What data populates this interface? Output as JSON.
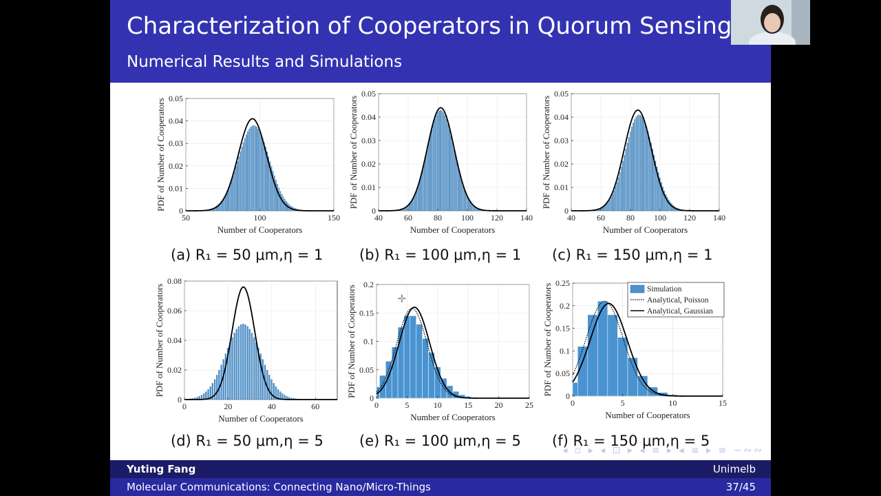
{
  "slide": {
    "title": "Characterization of Cooperators in Quorum Sensing",
    "subtitle": "Numerical Results and Simulations",
    "author": "Yuting Fang",
    "institution": "Unimelb",
    "talk_title": "Molecular Communications: Connecting Nano/Micro-Things",
    "page": "37/45",
    "nav_symbols": "◂ ▫ ▸ ◂ ⊡ ▸ ◂ ≡ ▸ ◂ ≡ ▸ ≡ ∽∾∾"
  },
  "colors": {
    "header": "#3333b2",
    "footer_dark": "#1c1c66",
    "footer_light": "#2929a0",
    "bar": "#4a93d1"
  },
  "chart_data": [
    {
      "type": "bar",
      "caption": "(a) R₁ = 50 μm,η = 1",
      "xlabel": "Number of Cooperators",
      "ylabel": "PDF of Number of Cooperators",
      "xlim": [
        50,
        150
      ],
      "ylim": [
        0,
        0.05
      ],
      "xticks": [
        "50",
        "100",
        "150"
      ],
      "yticks": [
        "0",
        "0.01",
        "0.02",
        "0.03",
        "0.04",
        "0.05"
      ],
      "series": [
        {
          "name": "Simulation",
          "kind": "bars",
          "mean": 96,
          "sd": 10.5,
          "peak": 0.038,
          "width": 1
        },
        {
          "name": "Analytical, Poisson",
          "kind": "dotted",
          "mean": 95,
          "sd": 9.6,
          "peak": 0.041
        },
        {
          "name": "Analytical, Gaussian",
          "kind": "solid",
          "mean": 95,
          "sd": 9.6,
          "peak": 0.041
        }
      ]
    },
    {
      "type": "bar",
      "caption": "(b) R₁ = 100 μm,η = 1",
      "xlabel": "Number of Cooperators",
      "ylabel": "PDF of Number of Cooperators",
      "xlim": [
        40,
        140
      ],
      "ylim": [
        0,
        0.05
      ],
      "xticks": [
        "40",
        "60",
        "80",
        "100",
        "120",
        "140"
      ],
      "yticks": [
        "0",
        "0.01",
        "0.02",
        "0.03",
        "0.04",
        "0.05"
      ],
      "series": [
        {
          "name": "Simulation",
          "kind": "bars",
          "mean": 82,
          "sd": 9.2,
          "peak": 0.043,
          "width": 1
        },
        {
          "name": "Analytical, Poisson",
          "kind": "dotted",
          "mean": 82,
          "sd": 9.1,
          "peak": 0.044
        },
        {
          "name": "Analytical, Gaussian",
          "kind": "solid",
          "mean": 82,
          "sd": 9.1,
          "peak": 0.044
        }
      ]
    },
    {
      "type": "bar",
      "caption": "(c) R₁ = 150 μm,η = 1",
      "xlabel": "Number of Cooperators",
      "ylabel": "PDF of Number of Cooperators",
      "xlim": [
        40,
        140
      ],
      "ylim": [
        0,
        0.05
      ],
      "xticks": [
        "40",
        "60",
        "80",
        "100",
        "120",
        "140"
      ],
      "yticks": [
        "0",
        "0.01",
        "0.02",
        "0.03",
        "0.04",
        "0.05"
      ],
      "series": [
        {
          "name": "Simulation",
          "kind": "bars",
          "mean": 86,
          "sd": 9.6,
          "peak": 0.041,
          "width": 1
        },
        {
          "name": "Analytical, Poisson",
          "kind": "dotted",
          "mean": 85,
          "sd": 9.3,
          "peak": 0.043
        },
        {
          "name": "Analytical, Gaussian",
          "kind": "solid",
          "mean": 85,
          "sd": 9.3,
          "peak": 0.043
        }
      ]
    },
    {
      "type": "bar",
      "caption": "(d) R₁ = 50 μm,η = 5",
      "xlabel": "Number of Cooperators",
      "ylabel": "PDF of Number of Cooperators",
      "xlim": [
        0,
        70
      ],
      "ylim": [
        0,
        0.08
      ],
      "xticks": [
        "0",
        "20",
        "40",
        "60"
      ],
      "yticks": [
        "0",
        "0.02",
        "0.04",
        "0.06",
        "0.08"
      ],
      "series": [
        {
          "name": "Simulation",
          "kind": "bars",
          "mean": 27,
          "sd": 8,
          "peak": 0.051,
          "width": 1
        },
        {
          "name": "Analytical, Poisson",
          "kind": "dotted",
          "mean": 27,
          "sd": 5.2,
          "peak": 0.076
        },
        {
          "name": "Analytical, Gaussian",
          "kind": "solid",
          "mean": 27,
          "sd": 5.2,
          "peak": 0.076
        }
      ]
    },
    {
      "type": "bar",
      "caption": "(e) R₁ = 100 μm,η = 5",
      "xlabel": "Number of Cooperators",
      "ylabel": "PDF of Number of Cooperators",
      "xlim": [
        0,
        25
      ],
      "ylim": [
        0,
        0.2
      ],
      "xticks": [
        "0",
        "5",
        "10",
        "15",
        "20",
        "25"
      ],
      "yticks": [
        "0",
        "0.05",
        "0.1",
        "0.15",
        "0.2"
      ],
      "series": [
        {
          "name": "Simulation",
          "kind": "bars",
          "x": [
            0,
            1,
            2,
            3,
            4,
            5,
            6,
            7,
            8,
            9,
            10,
            11,
            12,
            13,
            14,
            15,
            16
          ],
          "values": [
            0.02,
            0.04,
            0.065,
            0.09,
            0.125,
            0.145,
            0.145,
            0.13,
            0.105,
            0.08,
            0.055,
            0.035,
            0.022,
            0.012,
            0.006,
            0.003,
            0.001
          ],
          "width": 1
        },
        {
          "name": "Analytical, Poisson",
          "kind": "dotted",
          "mean": 5.8,
          "sd": 2.5,
          "peak": 0.158
        },
        {
          "name": "Analytical, Gaussian",
          "kind": "solid",
          "mean": 6.2,
          "sd": 2.5,
          "peak": 0.16
        }
      ]
    },
    {
      "type": "bar",
      "caption": "(f) R₁ = 150 μm,η = 5",
      "xlabel": "Number of Cooperators",
      "ylabel": "PDF of Number of Cooperators",
      "xlim": [
        0,
        15
      ],
      "ylim": [
        0,
        0.25
      ],
      "xticks": [
        "0",
        "5",
        "10",
        "15"
      ],
      "yticks": [
        "0",
        "0.05",
        "0.1",
        "0.15",
        "0.2",
        "0.25"
      ],
      "legend": "top-right",
      "series": [
        {
          "name": "Simulation",
          "kind": "bars",
          "x": [
            0,
            1,
            2,
            3,
            4,
            5,
            6,
            7,
            8,
            9,
            10,
            11
          ],
          "values": [
            0.03,
            0.11,
            0.18,
            0.21,
            0.18,
            0.13,
            0.085,
            0.045,
            0.02,
            0.008,
            0.003,
            0.001
          ],
          "width": 1
        },
        {
          "name": "Analytical, Poisson",
          "kind": "dotted",
          "mean": 3.2,
          "sd": 1.85,
          "peak": 0.21
        },
        {
          "name": "Analytical, Gaussian",
          "kind": "solid",
          "mean": 3.6,
          "sd": 1.85,
          "peak": 0.205
        }
      ]
    }
  ]
}
